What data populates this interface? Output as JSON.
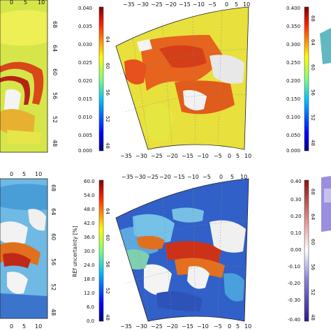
{
  "chart_data": [
    {
      "type": "heatmap",
      "panel": "top-left",
      "colorbar": null,
      "x_ticks": [],
      "y_ticks": [
        "68",
        "64",
        "60",
        "56",
        "52",
        "48"
      ],
      "dominant_colors": [
        "#e8e83a",
        "#d9e84f",
        "#e05a1a",
        "#cc2a1a"
      ],
      "ylim": [
        48,
        68
      ]
    },
    {
      "type": "heatmap",
      "panel": "top-middle",
      "colorbar": {
        "ticks": [
          "0.040",
          "0.035",
          "0.030",
          "0.025",
          "0.020",
          "0.015",
          "0.010",
          "0.005",
          "0.000"
        ],
        "range": [
          0.0,
          0.04
        ],
        "label": ""
      },
      "x_ticks": [
        "−35",
        "−30",
        "−25",
        "−20",
        "−15",
        "−10",
        "−5",
        "0",
        "5",
        "10"
      ],
      "lat_ticks": [
        "64",
        "60",
        "56",
        "52",
        "48"
      ],
      "dominant_colors": [
        "#e8e33a",
        "#e86a1c",
        "#d8401a"
      ]
    },
    {
      "type": "heatmap",
      "panel": "top-right",
      "colorbar": {
        "ticks": [
          "0.400",
          "0.350",
          "0.300",
          "0.250",
          "0.200",
          "0.150",
          "0.100",
          "0.050",
          "0.000"
        ],
        "range": [
          0.0,
          0.4
        ],
        "label": ""
      },
      "lat_ticks": [
        "68",
        "64",
        "60",
        "56",
        "52",
        "48"
      ]
    },
    {
      "type": "heatmap",
      "panel": "bottom-left",
      "colorbar": null,
      "x_ticks": [
        "0",
        "5",
        "10"
      ],
      "y_ticks": [
        "68",
        "64",
        "60",
        "56",
        "52",
        "48"
      ],
      "dominant_colors": [
        "#6fb8e6",
        "#4aa8d8",
        "#e07020",
        "#2a58c8"
      ],
      "ylim": [
        48,
        68
      ]
    },
    {
      "type": "heatmap",
      "panel": "bottom-middle",
      "colorbar": {
        "ticks": [
          "60.0",
          "54.0",
          "48.0",
          "42.0",
          "36.0",
          "30.0",
          "24.0",
          "18.0",
          "12.0",
          "6.0",
          "0.0"
        ],
        "range": [
          0.0,
          60.0
        ],
        "label": "REf uncertainty [%]"
      },
      "x_ticks": [
        "−35",
        "−30",
        "−25",
        "−20",
        "−15",
        "−10",
        "−5",
        "0",
        "5",
        "10"
      ],
      "lat_ticks": [
        "64",
        "60",
        "56",
        "52",
        "48"
      ],
      "dominant_colors": [
        "#2e5bc8",
        "#5fa8e0",
        "#e07020",
        "#c02818"
      ]
    },
    {
      "type": "heatmap",
      "panel": "bottom-right",
      "colorbar": {
        "ticks": [
          "0.40",
          "0.30",
          "0.20",
          "0.10",
          "0.00",
          "-0.10",
          "-0.20",
          "-0.30",
          "-0.40"
        ],
        "range": [
          -0.4,
          0.4
        ],
        "label": ""
      },
      "lat_ticks": [
        "68",
        "64",
        "60",
        "56",
        "52",
        "48"
      ]
    }
  ],
  "colors": {
    "jet": [
      "#00007f",
      "#0000ff",
      "#007fff",
      "#00ffff",
      "#7fff7f",
      "#ffff00",
      "#ff7f00",
      "#ff0000",
      "#7f0000"
    ],
    "diverging": [
      "#2c1a8c",
      "#5a4ec0",
      "#a8a4e0",
      "#ffffff",
      "#f0b0b0",
      "#d85050",
      "#8c1010"
    ]
  }
}
